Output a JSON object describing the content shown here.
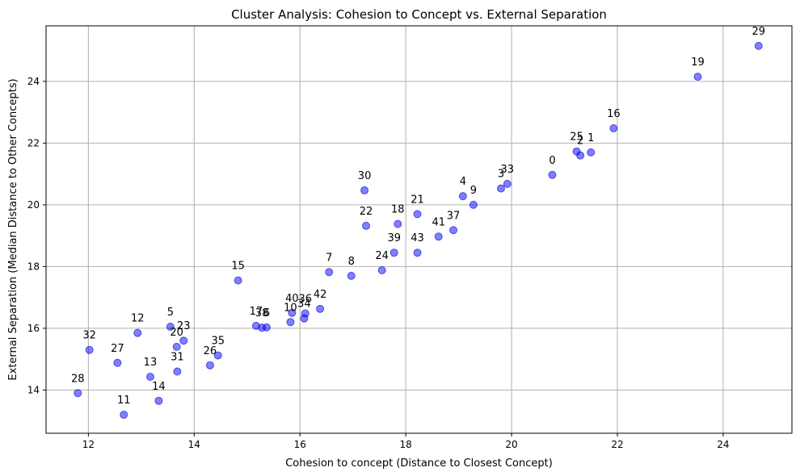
{
  "chart_data": {
    "type": "scatter",
    "title": "Cluster Analysis: Cohesion to Concept vs. External Separation",
    "xlabel": "Cohesion to concept (Distance to Closest Concept)",
    "ylabel": "External Separation (Median Distance to Other Concepts)",
    "xlim": [
      11.2,
      25.3
    ],
    "ylim": [
      12.6,
      25.8
    ],
    "xticks": [
      12,
      14,
      16,
      18,
      20,
      22,
      24
    ],
    "yticks": [
      14,
      16,
      18,
      20,
      22,
      24
    ],
    "grid": true,
    "marker_color": "#0000ff",
    "marker_edge_color": "#0000cc",
    "marker_alpha": 0.5,
    "points": [
      {
        "label": "0",
        "x": 20.77,
        "y": 20.97
      },
      {
        "label": "1",
        "x": 21.5,
        "y": 21.7
      },
      {
        "label": "2",
        "x": 21.3,
        "y": 21.6
      },
      {
        "label": "3",
        "x": 19.8,
        "y": 20.53
      },
      {
        "label": "4",
        "x": 19.08,
        "y": 20.28
      },
      {
        "label": "5",
        "x": 13.55,
        "y": 16.05
      },
      {
        "label": "6",
        "x": 15.37,
        "y": 16.03
      },
      {
        "label": "7",
        "x": 16.55,
        "y": 17.82
      },
      {
        "label": "8",
        "x": 16.97,
        "y": 17.7
      },
      {
        "label": "9",
        "x": 19.28,
        "y": 20.0
      },
      {
        "label": "10",
        "x": 15.82,
        "y": 16.2
      },
      {
        "label": "11",
        "x": 12.67,
        "y": 13.2
      },
      {
        "label": "12",
        "x": 12.93,
        "y": 15.85
      },
      {
        "label": "13",
        "x": 13.17,
        "y": 14.43
      },
      {
        "label": "14",
        "x": 13.33,
        "y": 13.65
      },
      {
        "label": "15",
        "x": 14.83,
        "y": 17.55
      },
      {
        "label": "17",
        "x": 15.17,
        "y": 16.08
      },
      {
        "label": "38",
        "x": 15.28,
        "y": 16.02
      },
      {
        "label": "16",
        "x": 21.93,
        "y": 22.48
      },
      {
        "label": "18",
        "x": 17.85,
        "y": 19.38
      },
      {
        "label": "19",
        "x": 23.52,
        "y": 24.15
      },
      {
        "label": "20",
        "x": 13.67,
        "y": 15.4
      },
      {
        "label": "21",
        "x": 18.22,
        "y": 19.7
      },
      {
        "label": "22",
        "x": 17.25,
        "y": 19.32
      },
      {
        "label": "23",
        "x": 13.8,
        "y": 15.6
      },
      {
        "label": "24",
        "x": 17.55,
        "y": 17.88
      },
      {
        "label": "25",
        "x": 21.23,
        "y": 21.73
      },
      {
        "label": "26",
        "x": 14.3,
        "y": 14.8
      },
      {
        "label": "27",
        "x": 12.55,
        "y": 14.88
      },
      {
        "label": "28",
        "x": 11.8,
        "y": 13.9
      },
      {
        "label": "29",
        "x": 24.67,
        "y": 25.15
      },
      {
        "label": "30",
        "x": 17.22,
        "y": 20.47
      },
      {
        "label": "31",
        "x": 13.68,
        "y": 14.6
      },
      {
        "label": "32",
        "x": 12.02,
        "y": 15.3
      },
      {
        "label": "33",
        "x": 19.92,
        "y": 20.68
      },
      {
        "label": "34",
        "x": 16.08,
        "y": 16.32
      },
      {
        "label": "35",
        "x": 14.45,
        "y": 15.12
      },
      {
        "label": "36",
        "x": 16.1,
        "y": 16.48
      },
      {
        "label": "37",
        "x": 18.9,
        "y": 19.18
      },
      {
        "label": "39",
        "x": 17.78,
        "y": 18.45
      },
      {
        "label": "40",
        "x": 15.85,
        "y": 16.5
      },
      {
        "label": "41",
        "x": 18.62,
        "y": 18.97
      },
      {
        "label": "42",
        "x": 16.38,
        "y": 16.63
      },
      {
        "label": "43",
        "x": 18.22,
        "y": 18.45
      }
    ]
  }
}
